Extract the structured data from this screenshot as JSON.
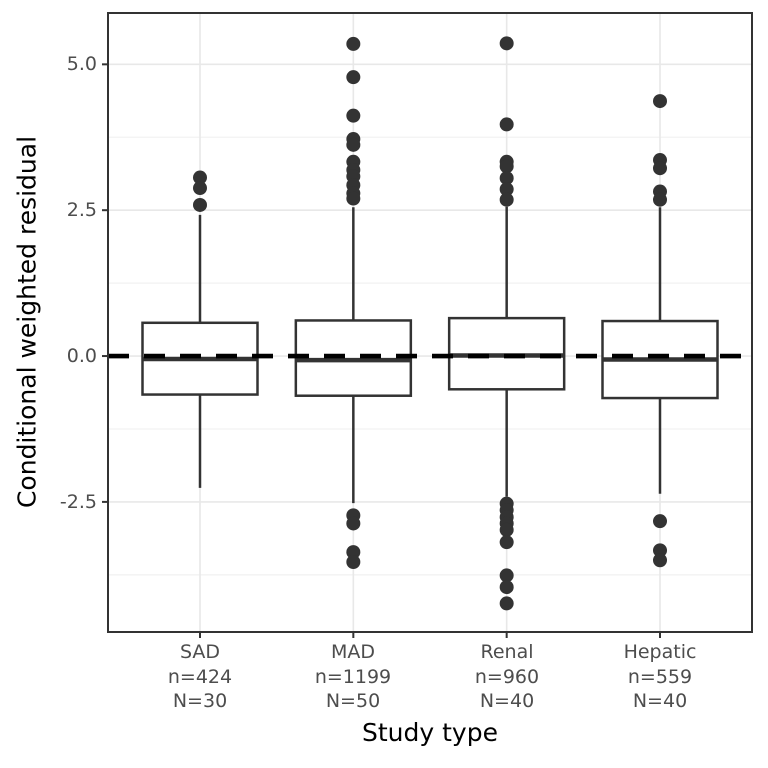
{
  "styles": {
    "ink": "#333333",
    "reference_line_color": "#000000",
    "grid_major": "#e8e8e8",
    "grid_minor": "#f2f2f2",
    "panel_border": "#333333",
    "tick_mark_color": "#333333",
    "text_muted": "#4d4d4d",
    "background": "#ffffff"
  },
  "chart_data": {
    "type": "boxplot",
    "title": "",
    "xlabel": "Study type",
    "ylabel": "Conditional weighted residual",
    "ylim": [
      -4.73,
      5.88
    ],
    "grid": true,
    "legend_position": "none",
    "reference_line": {
      "y": 0,
      "style": "dashed"
    },
    "y_major_ticks": [
      {
        "value": 5.0,
        "label": "5.0"
      },
      {
        "value": 2.5,
        "label": "2.5"
      },
      {
        "value": 0.0,
        "label": "0.0"
      },
      {
        "value": -2.5,
        "label": "-2.5"
      }
    ],
    "y_minor_ticks": [
      3.75,
      1.25,
      -1.25,
      -3.75
    ],
    "categories": [
      {
        "label": "SAD",
        "n_label": "n=424",
        "N_label": "N=30",
        "q1": -0.66,
        "median": -0.05,
        "q3": 0.57,
        "whisker_low": -2.26,
        "whisker_high": 2.42,
        "outliers_high": [
          3.06,
          2.88,
          2.59
        ],
        "outliers_low": []
      },
      {
        "label": "MAD",
        "n_label": "n=1199",
        "N_label": "N=50",
        "q1": -0.68,
        "median": -0.07,
        "q3": 0.61,
        "whisker_low": -2.52,
        "whisker_high": 2.55,
        "outliers_high": [
          5.35,
          4.78,
          4.12,
          3.72,
          3.62,
          3.33,
          3.19,
          3.08,
          2.93,
          2.79,
          2.7
        ],
        "outliers_low": [
          -2.73,
          -2.87,
          -3.36,
          -3.53
        ]
      },
      {
        "label": "Renal",
        "n_label": "n=960",
        "N_label": "N=40",
        "q1": -0.57,
        "median": 0.01,
        "q3": 0.65,
        "whisker_low": -2.41,
        "whisker_high": 2.56,
        "outliers_high": [
          5.36,
          3.97,
          3.33,
          3.25,
          3.05,
          2.86,
          2.68
        ],
        "outliers_low": [
          -2.53,
          -2.64,
          -2.76,
          -2.87,
          -2.98,
          -3.19,
          -3.76,
          -3.96,
          -4.24
        ]
      },
      {
        "label": "Hepatic",
        "n_label": "n=559",
        "N_label": "N=40",
        "q1": -0.72,
        "median": -0.06,
        "q3": 0.6,
        "whisker_low": -2.36,
        "whisker_high": 2.55,
        "outliers_high": [
          4.37,
          3.36,
          3.22,
          2.82,
          2.68
        ],
        "outliers_low": [
          -2.83,
          -3.33,
          -3.5
        ]
      }
    ]
  }
}
